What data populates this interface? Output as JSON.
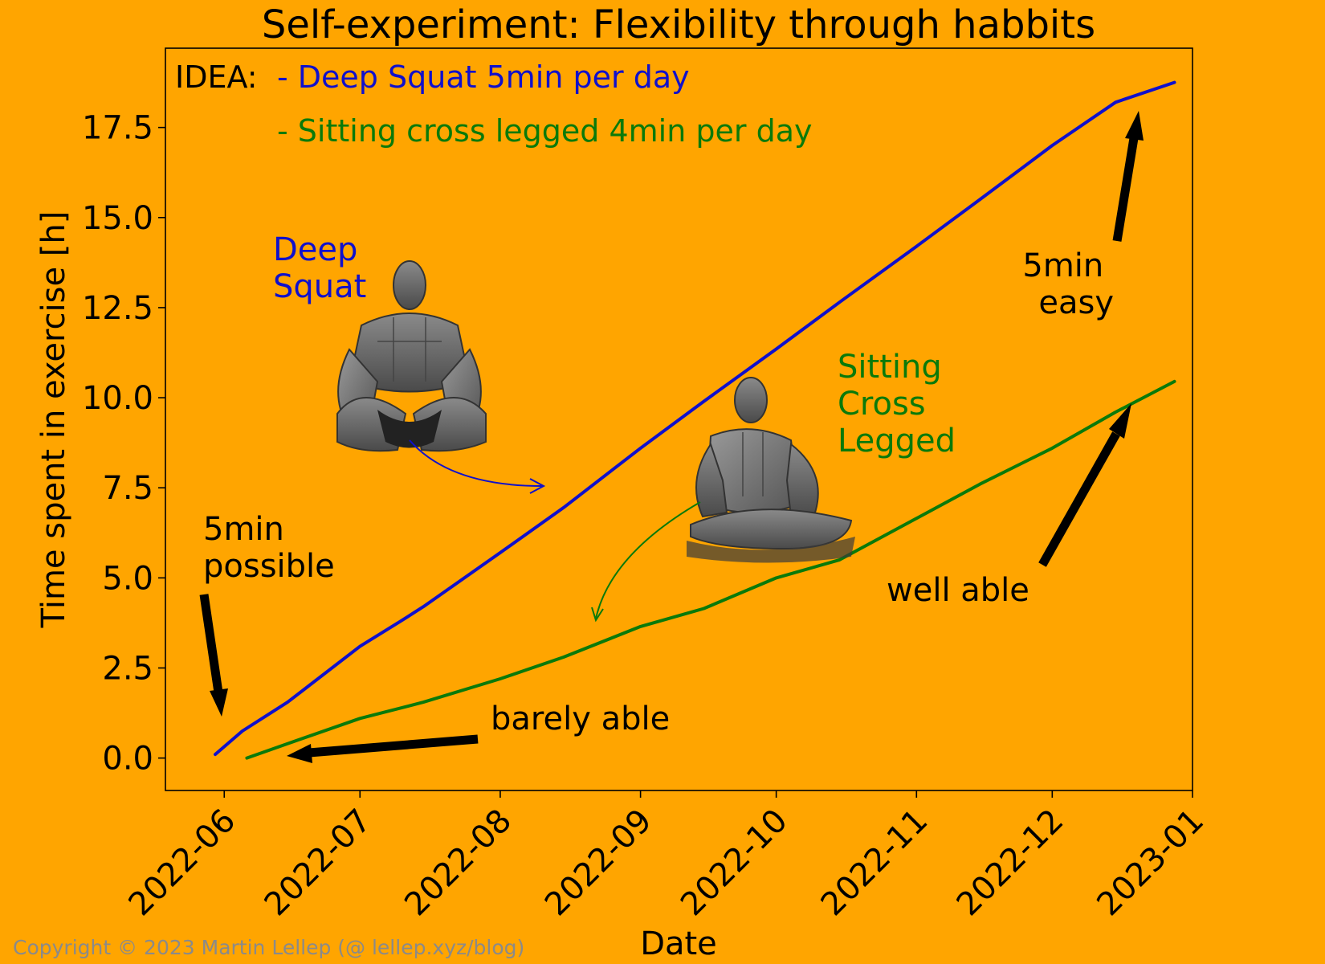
{
  "chart_data": {
    "type": "line",
    "title": "Self-experiment: Flexibility through habbits",
    "xlabel": "Date",
    "ylabel": "Time spent in exercise [h]",
    "x_ticks": [
      "2022-06",
      "2022-07",
      "2022-08",
      "2022-09",
      "2022-10",
      "2022-11",
      "2022-12",
      "2023-01"
    ],
    "y_ticks": [
      "0.0",
      "2.5",
      "5.0",
      "7.5",
      "10.0",
      "12.5",
      "15.0",
      "17.5"
    ],
    "ylim": [
      -0.9,
      19.7
    ],
    "xlim": [
      "2022-05-19",
      "2023-01-01"
    ],
    "grid": false,
    "series": [
      {
        "name": "Deep Squat",
        "color": "#1010CC",
        "points": [
          [
            "2022-05-30",
            0.1
          ],
          [
            "2022-06-05",
            0.75
          ],
          [
            "2022-06-15",
            1.55
          ],
          [
            "2022-07-01",
            3.1
          ],
          [
            "2022-07-10",
            3.8
          ],
          [
            "2022-07-15",
            4.2
          ],
          [
            "2022-08-01",
            5.7
          ],
          [
            "2022-08-15",
            6.95
          ],
          [
            "2022-09-01",
            8.6
          ],
          [
            "2022-09-15",
            9.9
          ],
          [
            "2022-10-01",
            11.35
          ],
          [
            "2022-10-15",
            12.65
          ],
          [
            "2022-11-01",
            14.2
          ],
          [
            "2022-11-15",
            15.5
          ],
          [
            "2022-12-01",
            17.0
          ],
          [
            "2022-12-15",
            18.2
          ],
          [
            "2022-12-28",
            18.75
          ]
        ]
      },
      {
        "name": "Sitting Cross Legged",
        "color": "#0A7A0A",
        "points": [
          [
            "2022-06-06",
            0.0
          ],
          [
            "2022-06-15",
            0.4
          ],
          [
            "2022-07-01",
            1.1
          ],
          [
            "2022-07-15",
            1.55
          ],
          [
            "2022-08-01",
            2.2
          ],
          [
            "2022-08-15",
            2.8
          ],
          [
            "2022-09-01",
            3.65
          ],
          [
            "2022-09-15",
            4.15
          ],
          [
            "2022-10-01",
            5.0
          ],
          [
            "2022-10-15",
            5.5
          ],
          [
            "2022-11-01",
            6.65
          ],
          [
            "2022-11-15",
            7.6
          ],
          [
            "2022-12-01",
            8.6
          ],
          [
            "2022-12-15",
            9.6
          ],
          [
            "2022-12-28",
            10.45
          ]
        ]
      }
    ],
    "idea": {
      "label": "IDEA:",
      "line1": "- Deep Squat 5min per day",
      "line2": "- Sitting cross legged 4min per day"
    },
    "annotations": {
      "deep_squat_label": [
        "Deep",
        "Squat"
      ],
      "cross_legged_label": [
        "Sitting",
        "Cross",
        "Legged"
      ],
      "possible": [
        "5min",
        "possible"
      ],
      "barely": "barely able",
      "well": "well able",
      "easy": [
        "5min",
        "easy"
      ]
    },
    "copyright": "Copyright © 2023 Martin Lellep (@ lellep.xyz/blog)"
  }
}
